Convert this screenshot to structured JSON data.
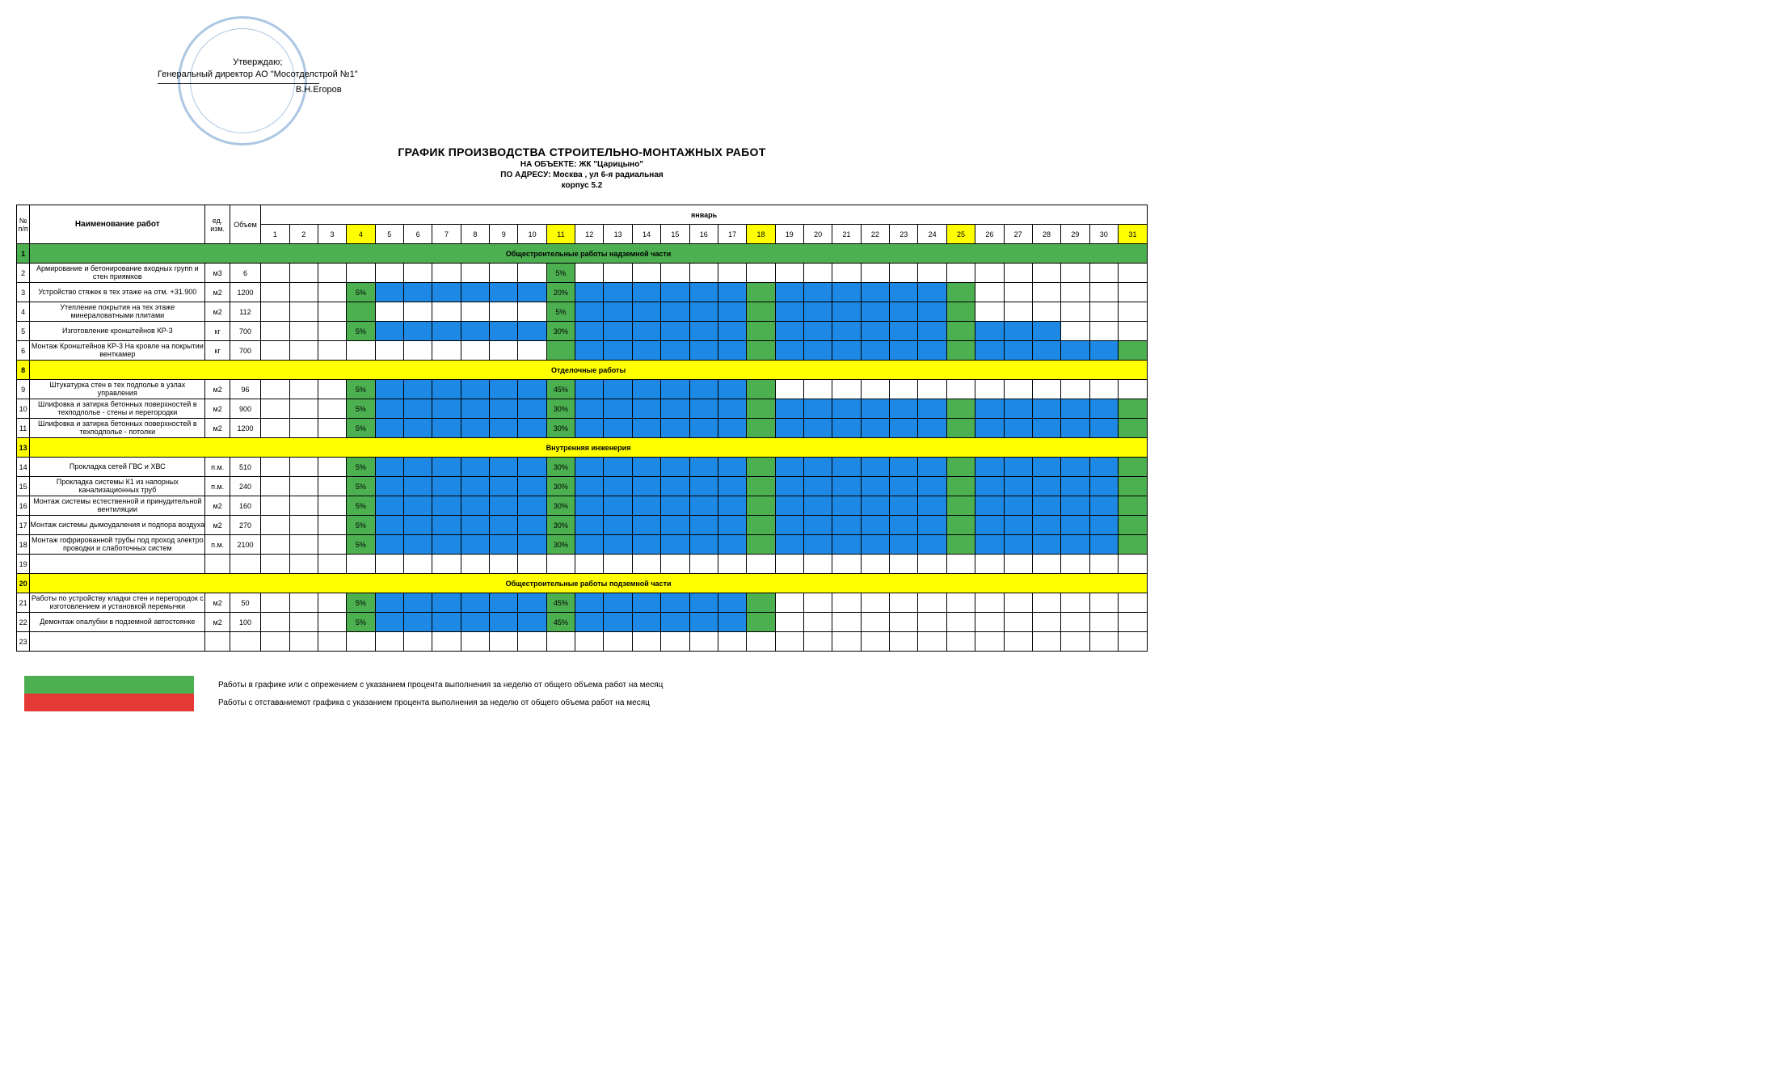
{
  "colors": {
    "green": "#4caf50",
    "yellow": "#ffff00",
    "blue": "#1e88e5",
    "red": "#e53935",
    "white": "#ffffff"
  },
  "approve": {
    "line1": "Утверждаю;",
    "line2": "Генеральный директор АО \"Мосотделстрой №1\"",
    "name": "В.Н.Егоров"
  },
  "title": {
    "main": "ГРАФИК ПРОИЗВОДСТВА СТРОИТЕЛЬНО-МОНТАЖНЫХ РАБОТ",
    "object": "НА ОБЪЕКТЕ: ЖК \"Царицыно\"",
    "address": "ПО АДРЕСУ: Москва , ул 6-я радиальная",
    "building": "корпус 5.2"
  },
  "headers": {
    "num": "№ п/п",
    "name": "Наименование работ",
    "unit": "ед. изм.",
    "volume": "Объем",
    "month": "январь"
  },
  "days": [
    1,
    2,
    3,
    4,
    5,
    6,
    7,
    8,
    9,
    10,
    11,
    12,
    13,
    14,
    15,
    16,
    17,
    18,
    19,
    20,
    21,
    22,
    23,
    24,
    25,
    26,
    27,
    28,
    29,
    30,
    31
  ],
  "weekend_days": [
    4,
    11,
    18,
    25,
    31
  ],
  "sections": [
    {
      "num": "1",
      "label": "Общестроительные работы надземной части",
      "color": "green"
    },
    {
      "num": "8",
      "label": "Отделочные работы",
      "color": "yellow"
    },
    {
      "num": "13",
      "label": "Внутренняя инженерия",
      "color": "yellow"
    },
    {
      "num": "20",
      "label": "Общестроительные работы подземной части",
      "color": "yellow"
    }
  ],
  "rows": [
    {
      "section": 0
    },
    {
      "num": "2",
      "name": "Армирование и бетонирование входных групп и стен приямков",
      "unit": "м3",
      "vol": "6",
      "cells": [
        0,
        0,
        0,
        0,
        0,
        0,
        0,
        0,
        0,
        0,
        "5%g",
        0,
        0,
        0,
        0,
        0,
        0,
        0,
        0,
        0,
        0,
        0,
        0,
        0,
        0,
        0,
        0,
        0,
        0,
        0,
        0
      ]
    },
    {
      "num": "3",
      "name": "Устройство стяжек в тех этаже на отм. +31.900",
      "unit": "м2",
      "vol": "1200",
      "cells": [
        0,
        0,
        0,
        "5%g",
        "b",
        "b",
        "b",
        "b",
        "b",
        "b",
        "20%g",
        "b",
        "b",
        "b",
        "b",
        "b",
        "b",
        "g",
        "b",
        "b",
        "b",
        "b",
        "b",
        "b",
        "g",
        0,
        0,
        0,
        0,
        0,
        0
      ]
    },
    {
      "num": "4",
      "name": "Утепление покрытия на тех этаже минераловатными плитами",
      "unit": "м2",
      "vol": "112",
      "cells": [
        0,
        0,
        0,
        "g",
        0,
        0,
        0,
        0,
        0,
        0,
        "5%g",
        "b",
        "b",
        "b",
        "b",
        "b",
        "b",
        "g",
        "b",
        "b",
        "b",
        "b",
        "b",
        "b",
        "g",
        0,
        0,
        0,
        0,
        0,
        0
      ]
    },
    {
      "num": "5",
      "name": "Изготовление кронштейнов КР-3",
      "unit": "кг",
      "vol": "700",
      "cells": [
        0,
        0,
        0,
        "5%g",
        "b",
        "b",
        "b",
        "b",
        "b",
        "b",
        "30%g",
        "b",
        "b",
        "b",
        "b",
        "b",
        "b",
        "g",
        "b",
        "b",
        "b",
        "b",
        "b",
        "b",
        "g",
        "b",
        "b",
        "b",
        0,
        0,
        0
      ]
    },
    {
      "num": "6",
      "name": "Монтаж Кронштейнов КР-3 На кровле на покрытии венткамер",
      "unit": "кг",
      "vol": "700",
      "cells": [
        0,
        0,
        0,
        0,
        0,
        0,
        0,
        0,
        0,
        0,
        "g",
        "b",
        "b",
        "b",
        "b",
        "b",
        "b",
        "g",
        "b",
        "b",
        "b",
        "b",
        "b",
        "b",
        "g",
        "b",
        "b",
        "b",
        "b",
        "b",
        "g"
      ]
    },
    {
      "section": 1
    },
    {
      "num": "9",
      "name": "Штукатурка стен в тех подполье в узлах управления",
      "unit": "м2",
      "vol": "96",
      "cells": [
        0,
        0,
        0,
        "5%g",
        "b",
        "b",
        "b",
        "b",
        "b",
        "b",
        "45%g",
        "b",
        "b",
        "b",
        "b",
        "b",
        "b",
        "g",
        0,
        0,
        0,
        0,
        0,
        0,
        0,
        0,
        0,
        0,
        0,
        0,
        0
      ]
    },
    {
      "num": "10",
      "name": "Шлифовка и затирка бетонных поверхностей в техподполье - стены и перегородки",
      "unit": "м2",
      "vol": "900",
      "cells": [
        0,
        0,
        0,
        "5%g",
        "b",
        "b",
        "b",
        "b",
        "b",
        "b",
        "30%g",
        "b",
        "b",
        "b",
        "b",
        "b",
        "b",
        "g",
        "b",
        "b",
        "b",
        "b",
        "b",
        "b",
        "g",
        "b",
        "b",
        "b",
        "b",
        "b",
        "g"
      ]
    },
    {
      "num": "11",
      "name": "Шлифовка и затирка бетонных поверхностей в техподполье - потолки",
      "unit": "м2",
      "vol": "1200",
      "cells": [
        0,
        0,
        0,
        "5%g",
        "b",
        "b",
        "b",
        "b",
        "b",
        "b",
        "30%g",
        "b",
        "b",
        "b",
        "b",
        "b",
        "b",
        "g",
        "b",
        "b",
        "b",
        "b",
        "b",
        "b",
        "g",
        "b",
        "b",
        "b",
        "b",
        "b",
        "g"
      ]
    },
    {
      "section": 2
    },
    {
      "num": "14",
      "name": "Прокладка сетей ГВС и ХВС",
      "unit": "п.м.",
      "vol": "510",
      "cells": [
        0,
        0,
        0,
        "5%g",
        "b",
        "b",
        "b",
        "b",
        "b",
        "b",
        "30%g",
        "b",
        "b",
        "b",
        "b",
        "b",
        "b",
        "g",
        "b",
        "b",
        "b",
        "b",
        "b",
        "b",
        "g",
        "b",
        "b",
        "b",
        "b",
        "b",
        "g"
      ]
    },
    {
      "num": "15",
      "name": "Прокладка системы К1 из напорных канализационных труб",
      "unit": "п.м.",
      "vol": "240",
      "cells": [
        0,
        0,
        0,
        "5%g",
        "b",
        "b",
        "b",
        "b",
        "b",
        "b",
        "30%g",
        "b",
        "b",
        "b",
        "b",
        "b",
        "b",
        "g",
        "b",
        "b",
        "b",
        "b",
        "b",
        "b",
        "g",
        "b",
        "b",
        "b",
        "b",
        "b",
        "g"
      ]
    },
    {
      "num": "16",
      "name": "Монтаж системы естественной и принудительной вентиляции",
      "unit": "м2",
      "vol": "160",
      "cells": [
        0,
        0,
        0,
        "5%g",
        "b",
        "b",
        "b",
        "b",
        "b",
        "b",
        "30%g",
        "b",
        "b",
        "b",
        "b",
        "b",
        "b",
        "g",
        "b",
        "b",
        "b",
        "b",
        "b",
        "b",
        "g",
        "b",
        "b",
        "b",
        "b",
        "b",
        "g"
      ]
    },
    {
      "num": "17",
      "name": "Монтаж системы дымоудаления и подпора воздуха",
      "unit": "м2",
      "vol": "270",
      "cells": [
        0,
        0,
        0,
        "5%g",
        "b",
        "b",
        "b",
        "b",
        "b",
        "b",
        "30%g",
        "b",
        "b",
        "b",
        "b",
        "b",
        "b",
        "g",
        "b",
        "b",
        "b",
        "b",
        "b",
        "b",
        "g",
        "b",
        "b",
        "b",
        "b",
        "b",
        "g"
      ]
    },
    {
      "num": "18",
      "name": "Монтаж гофрированной трубы под проход электро проводки и слаботочных систем",
      "unit": "п.м.",
      "vol": "2100",
      "cells": [
        0,
        0,
        0,
        "5%g",
        "b",
        "b",
        "b",
        "b",
        "b",
        "b",
        "30%g",
        "b",
        "b",
        "b",
        "b",
        "b",
        "b",
        "g",
        "b",
        "b",
        "b",
        "b",
        "b",
        "b",
        "g",
        "b",
        "b",
        "b",
        "b",
        "b",
        "g"
      ]
    },
    {
      "num": "19",
      "name": "",
      "unit": "",
      "vol": "",
      "cells": [
        0,
        0,
        0,
        0,
        0,
        0,
        0,
        0,
        0,
        0,
        0,
        0,
        0,
        0,
        0,
        0,
        0,
        0,
        0,
        0,
        0,
        0,
        0,
        0,
        0,
        0,
        0,
        0,
        0,
        0,
        0
      ]
    },
    {
      "section": 3
    },
    {
      "num": "21",
      "name": "Работы по устройству кладки стен и перегородок с изготовлением и установкой перемычки",
      "unit": "м2",
      "vol": "50",
      "cells": [
        0,
        0,
        0,
        "5%g",
        "b",
        "b",
        "b",
        "b",
        "b",
        "b",
        "45%g",
        "b",
        "b",
        "b",
        "b",
        "b",
        "b",
        "g",
        0,
        0,
        0,
        0,
        0,
        0,
        0,
        0,
        0,
        0,
        0,
        0,
        0
      ]
    },
    {
      "num": "22",
      "name": "Демонтаж опалубки в подземной автостоянке",
      "unit": "м2",
      "vol": "100",
      "cells": [
        0,
        0,
        0,
        "5%g",
        "b",
        "b",
        "b",
        "b",
        "b",
        "b",
        "45%g",
        "b",
        "b",
        "b",
        "b",
        "b",
        "b",
        "g",
        0,
        0,
        0,
        0,
        0,
        0,
        0,
        0,
        0,
        0,
        0,
        0,
        0
      ]
    },
    {
      "num": "23",
      "name": "",
      "unit": "",
      "vol": "",
      "cells": [
        0,
        0,
        0,
        0,
        0,
        0,
        0,
        0,
        0,
        0,
        0,
        0,
        0,
        0,
        0,
        0,
        0,
        0,
        0,
        0,
        0,
        0,
        0,
        0,
        0,
        0,
        0,
        0,
        0,
        0,
        0
      ]
    }
  ],
  "legend": {
    "green_text": "Работы в графике или с опрежением с указанием процента выполнения за неделю от общего объема работ на месяц",
    "red_text": "Работы с отставаниемот графика с указанием процента выполнения за неделю от общего объема работ на месяц"
  }
}
